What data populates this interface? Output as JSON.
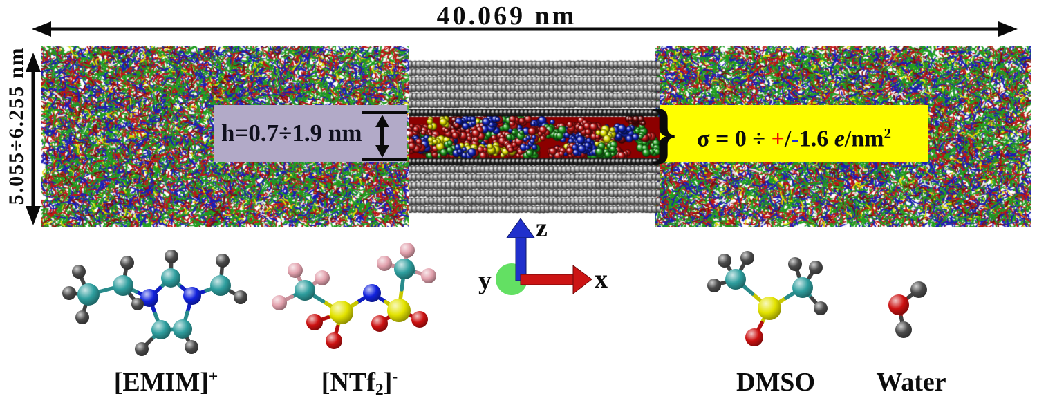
{
  "dimensions": {
    "width_label": "40.069 nm",
    "height_label": "5.055÷6.255 nm"
  },
  "pore": {
    "gap_label": "h=0.7÷1.9 nm",
    "brace": "}"
  },
  "sigma": {
    "prefix": "σ = 0 ÷ ",
    "plus": "+",
    "slash": "/",
    "minus": "-",
    "value": "1.6 ",
    "electron": "e",
    "unit": "/nm",
    "exponent": "2"
  },
  "axes": {
    "x_label": "x",
    "y_label": "y",
    "z_label": "z"
  },
  "molecule_labels": {
    "emim_main": "[EMIM]",
    "emim_sup": "+",
    "ntf2_open": "[NTf",
    "ntf2_sub": "2",
    "ntf2_close": "]",
    "ntf2_sup": "-",
    "dmso": "DMSO",
    "water": "Water"
  },
  "colors": {
    "purple_box": "#b2aac8",
    "yellow_box": "#ffff00",
    "plus_red": "#ee1100",
    "minus_blue": "#2233cc",
    "axis_x_red": "#cc1414",
    "axis_z_blue": "#2030cc",
    "axis_y_green": "#63e063",
    "atom_carbon": "#2e9e9e",
    "atom_nitrogen": "#1122dd",
    "atom_hydrogen": "#4a4a4a",
    "atom_oxygen": "#cc1111",
    "atom_sulfur": "#e3e300",
    "atom_fluorine": "#e2a1ad",
    "liquid_green": "#1f9e1f",
    "liquid_blue": "#1b1bb8",
    "liquid_red": "#c01515",
    "liquid_darkred": "#7d0b0b",
    "liquid_yellow": "#e0e000",
    "electrode_gray": "#8e8e8e",
    "electrode_wall": "#262626",
    "pore_base": "#8c0000",
    "arrow_black": "#0a0a0a"
  }
}
